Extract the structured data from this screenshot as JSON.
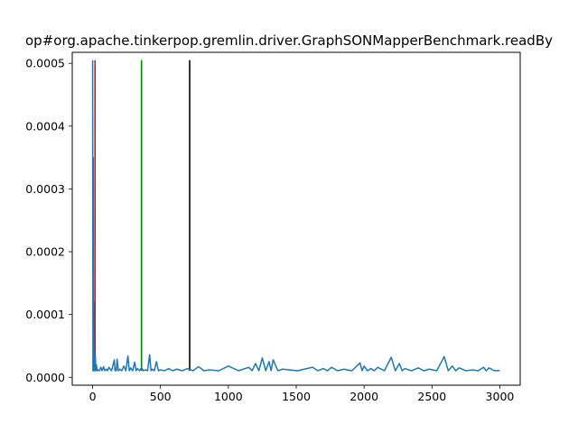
{
  "chart_data": {
    "type": "line",
    "title": "op#org.apache.tinkerpop.gremlin.driver.GraphSONMapperBenchmark.readBy",
    "xlabel": "",
    "ylabel": "",
    "xlim": [
      -150,
      3150
    ],
    "ylim": [
      -1.25e-05,
      0.0005175
    ],
    "xticks": [
      0,
      500,
      1000,
      1500,
      2000,
      2500,
      3000
    ],
    "xtick_labels": [
      "0",
      "500",
      "1000",
      "1500",
      "2000",
      "2500",
      "3000"
    ],
    "yticks": [
      0.0,
      0.0001,
      0.0002,
      0.0003,
      0.0004,
      0.0005
    ],
    "ytick_labels": [
      "0.0000",
      "0.0001",
      "0.0002",
      "0.0003",
      "0.0004",
      "0.0005"
    ],
    "grid": false,
    "colors": {
      "series": "#1f77b4",
      "red": "#ff0000",
      "green": "#008000",
      "black": "#000000"
    },
    "series": [
      {
        "color": "#1f77b4",
        "baseline": 1.05e-05,
        "points": [
          [
            0,
            0.000505
          ],
          [
            5,
            0.00035
          ],
          [
            8,
            0.00012
          ],
          [
            12,
            4e-05
          ],
          [
            20,
            3.4e-05
          ],
          [
            28,
            2e-05
          ],
          [
            40,
            1.2e-05
          ],
          [
            60,
            1.6e-05
          ],
          [
            80,
            1.7e-05
          ],
          [
            100,
            1.3e-05
          ],
          [
            120,
            1.6e-05
          ],
          [
            160,
            2.8e-05
          ],
          [
            170,
            1.4e-05
          ],
          [
            180,
            2.9e-05
          ],
          [
            200,
            1.3e-05
          ],
          [
            230,
            1.8e-05
          ],
          [
            260,
            3.4e-05
          ],
          [
            280,
            1.5e-05
          ],
          [
            310,
            2.4e-05
          ],
          [
            330,
            1.4e-05
          ],
          [
            360,
            1.5e-05
          ],
          [
            390,
            1.2e-05
          ],
          [
            420,
            3.6e-05
          ],
          [
            440,
            1.3e-05
          ],
          [
            470,
            2.5e-05
          ],
          [
            500,
            1.2e-05
          ],
          [
            560,
            1.4e-05
          ],
          [
            620,
            1.3e-05
          ],
          [
            700,
            1.4e-05
          ],
          [
            780,
            1.7e-05
          ],
          [
            860,
            1.2e-05
          ],
          [
            1000,
            1.8e-05
          ],
          [
            1150,
            1.6e-05
          ],
          [
            1200,
            2.2e-05
          ],
          [
            1250,
            3.1e-05
          ],
          [
            1300,
            2.5e-05
          ],
          [
            1330,
            2.8e-05
          ],
          [
            1400,
            1.3e-05
          ],
          [
            1620,
            1.6e-05
          ],
          [
            1700,
            1.4e-05
          ],
          [
            1760,
            1.6e-05
          ],
          [
            1850,
            1.3e-05
          ],
          [
            1970,
            2.3e-05
          ],
          [
            2000,
            1.8e-05
          ],
          [
            2050,
            1.4e-05
          ],
          [
            2100,
            1.6e-05
          ],
          [
            2200,
            3.2e-05
          ],
          [
            2260,
            2.2e-05
          ],
          [
            2300,
            1.4e-05
          ],
          [
            2400,
            1.5e-05
          ],
          [
            2480,
            1.3e-05
          ],
          [
            2590,
            3.3e-05
          ],
          [
            2650,
            1.8e-05
          ],
          [
            2700,
            1.5e-05
          ],
          [
            2800,
            1.2e-05
          ],
          [
            2880,
            1.6e-05
          ],
          [
            2920,
            1.5e-05
          ],
          [
            3000,
            1.1e-05
          ]
        ]
      }
    ],
    "vlines": [
      {
        "x": 18,
        "ymin": 1.05e-05,
        "ymax": 0.000505,
        "color": "#ff0000"
      },
      {
        "x": 360,
        "ymin": 1.05e-05,
        "ymax": 0.000505,
        "color": "#008000"
      },
      {
        "x": 715,
        "ymin": 1.05e-05,
        "ymax": 0.000505,
        "color": "#000000"
      }
    ]
  }
}
